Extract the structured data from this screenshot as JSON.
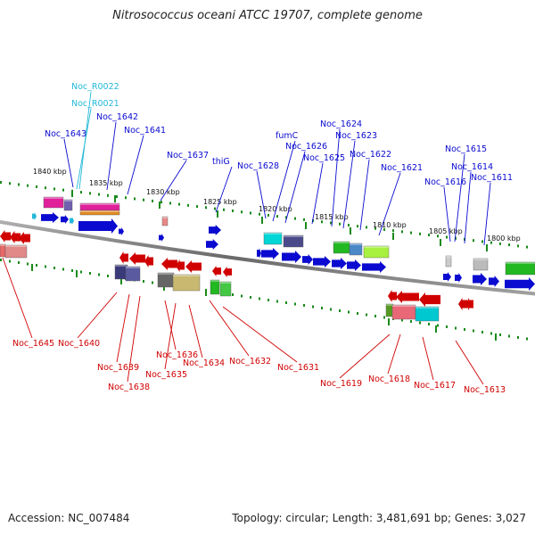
{
  "title": "Nitrosococcus oceani ATCC 19707, complete genome",
  "footer": {
    "accession": "Accession: NC_007484",
    "topology": "Topology: circular; Length: 3,481,691 bp; Genes: 3,027"
  },
  "kbp_labels": [
    "1840 kbp",
    "1835 kbp",
    "1830 kbp",
    "1825 kbp",
    "1820 kbp",
    "1815 kbp",
    "1810 kbp",
    "1805 kbp",
    "1800 kbp"
  ],
  "genes_top": [
    {
      "name": "Noc_R0022",
      "type": "rna"
    },
    {
      "name": "Noc_R0021",
      "type": "rna"
    },
    {
      "name": "Noc_1643",
      "type": "cds"
    },
    {
      "name": "Noc_1642",
      "type": "cds"
    },
    {
      "name": "Noc_1641",
      "type": "cds"
    },
    {
      "name": "Noc_1637",
      "type": "cds"
    },
    {
      "name": "thiG",
      "type": "cds"
    },
    {
      "name": "Noc_1628",
      "type": "cds"
    },
    {
      "name": "fumC",
      "type": "cds"
    },
    {
      "name": "Noc_1626",
      "type": "cds"
    },
    {
      "name": "Noc_1625",
      "type": "cds"
    },
    {
      "name": "Noc_1624",
      "type": "cds"
    },
    {
      "name": "Noc_1623",
      "type": "cds"
    },
    {
      "name": "Noc_1622",
      "type": "cds"
    },
    {
      "name": "Noc_1621",
      "type": "cds"
    },
    {
      "name": "Noc_1616",
      "type": "cds"
    },
    {
      "name": "Noc_1615",
      "type": "cds"
    },
    {
      "name": "Noc_1614",
      "type": "cds"
    },
    {
      "name": "Noc_1611",
      "type": "cds"
    }
  ],
  "genes_bottom": [
    {
      "name": "Noc_1645"
    },
    {
      "name": "Noc_1640"
    },
    {
      "name": "Noc_1639"
    },
    {
      "name": "Noc_1638"
    },
    {
      "name": "Noc_1636"
    },
    {
      "name": "Noc_1635"
    },
    {
      "name": "Noc_1634"
    },
    {
      "name": "Noc_1632"
    },
    {
      "name": "Noc_1631"
    },
    {
      "name": "Noc_1619"
    },
    {
      "name": "Noc_1618"
    },
    {
      "name": "Noc_1617"
    },
    {
      "name": "Noc_1613"
    }
  ],
  "colors": {
    "forward_strand": "#0a0ad0",
    "reverse_strand": "#d00000",
    "rna": "#22b8d8",
    "backbone": "#808080",
    "tick": "#1a8a1a"
  }
}
